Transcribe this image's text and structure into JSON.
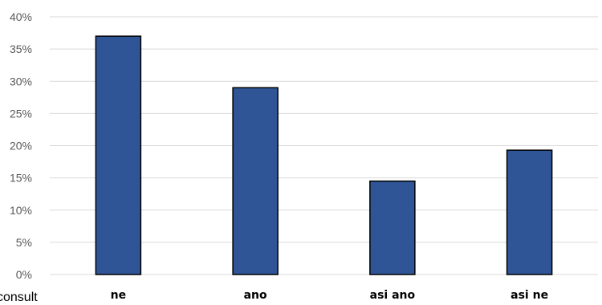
{
  "chart_data": {
    "type": "bar",
    "categories": [
      "ne",
      "ano",
      "asi ano",
      "asi ne"
    ],
    "values": [
      37,
      29,
      14.5,
      19.3
    ],
    "y_unit": "%",
    "ylim": [
      0,
      40
    ],
    "yticks": [
      "0%",
      "5%",
      "10%",
      "15%",
      "20%",
      "25%",
      "30%",
      "35%",
      "40%"
    ],
    "grid": true,
    "legend": "none",
    "colors": {
      "bar": "#2f5597",
      "bar_border": "#000000",
      "grid": "#d9d9d9"
    }
  },
  "footnote": "consult"
}
